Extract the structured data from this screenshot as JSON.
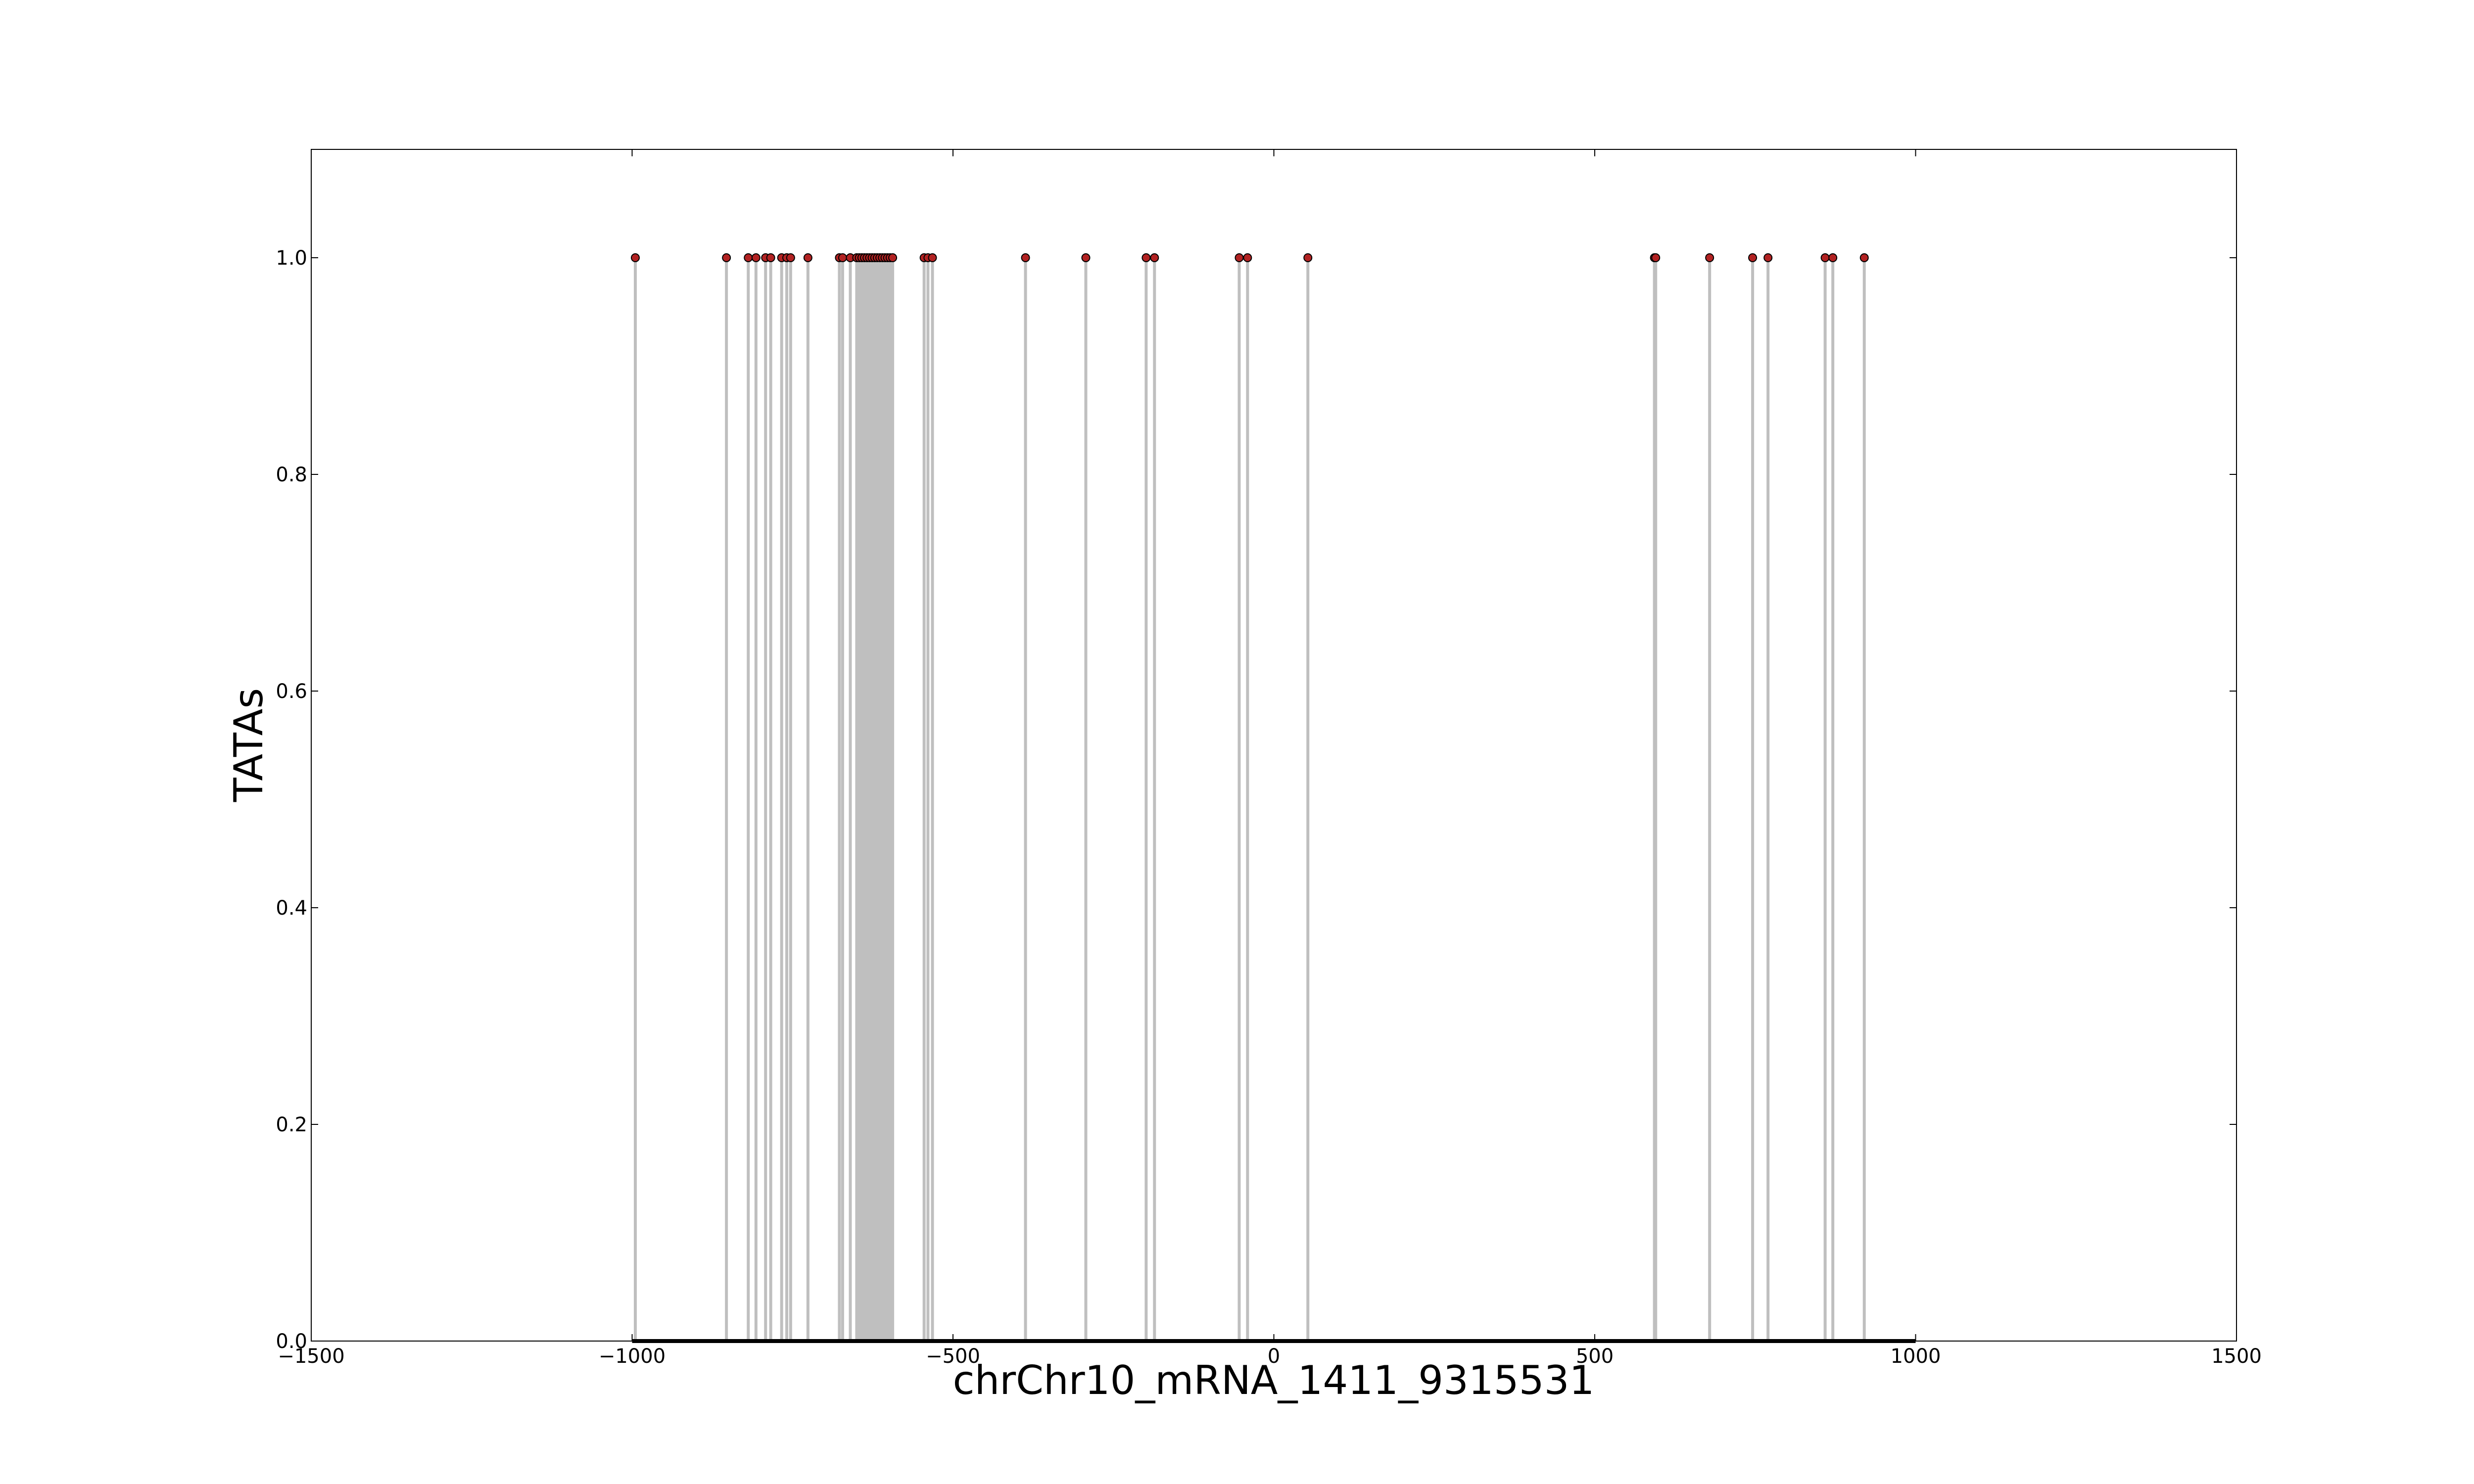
{
  "chart_data": {
    "type": "stem",
    "title": "",
    "xlabel": "chrChr10_mRNA_1411_9315531",
    "ylabel": "TATAs",
    "xlim": [
      -1500,
      1500
    ],
    "ylim": [
      0,
      1.1
    ],
    "xticks": [
      -1500,
      -1000,
      -500,
      0,
      500,
      1000,
      1500
    ],
    "xtick_labels": [
      "−1500",
      "−1000",
      "−500",
      "0",
      "500",
      "1000",
      "1500"
    ],
    "yticks": [
      0.0,
      0.2,
      0.4,
      0.6,
      0.8,
      1.0
    ],
    "ytick_labels": [
      "0.0",
      "0.2",
      "0.4",
      "0.6",
      "0.8",
      "1.0"
    ],
    "grid": false,
    "legend": "none",
    "baseline": {
      "from": -1000,
      "to": 1000,
      "value": 0,
      "color": "#000000"
    },
    "stem_color": "#bfbfbf",
    "marker_color": "#b22222",
    "positions": [
      -995,
      -853,
      -819,
      -807,
      -792,
      -784,
      -767,
      -759,
      -753,
      -726,
      -677,
      -672,
      -660,
      -650,
      -646,
      -642,
      -638,
      -634,
      -630,
      -626,
      -622,
      -618,
      -614,
      -610,
      -606,
      -602,
      -598,
      -594,
      -545,
      -539,
      -532,
      -387,
      -293,
      -199,
      -186,
      -54,
      -41,
      53,
      593,
      595,
      679,
      746,
      770,
      859,
      871,
      920
    ],
    "values": [
      1,
      1,
      1,
      1,
      1,
      1,
      1,
      1,
      1,
      1,
      1,
      1,
      1,
      1,
      1,
      1,
      1,
      1,
      1,
      1,
      1,
      1,
      1,
      1,
      1,
      1,
      1,
      1,
      1,
      1,
      1,
      1,
      1,
      1,
      1,
      1,
      1,
      1,
      1,
      1,
      1,
      1,
      1,
      1,
      1,
      1
    ]
  }
}
